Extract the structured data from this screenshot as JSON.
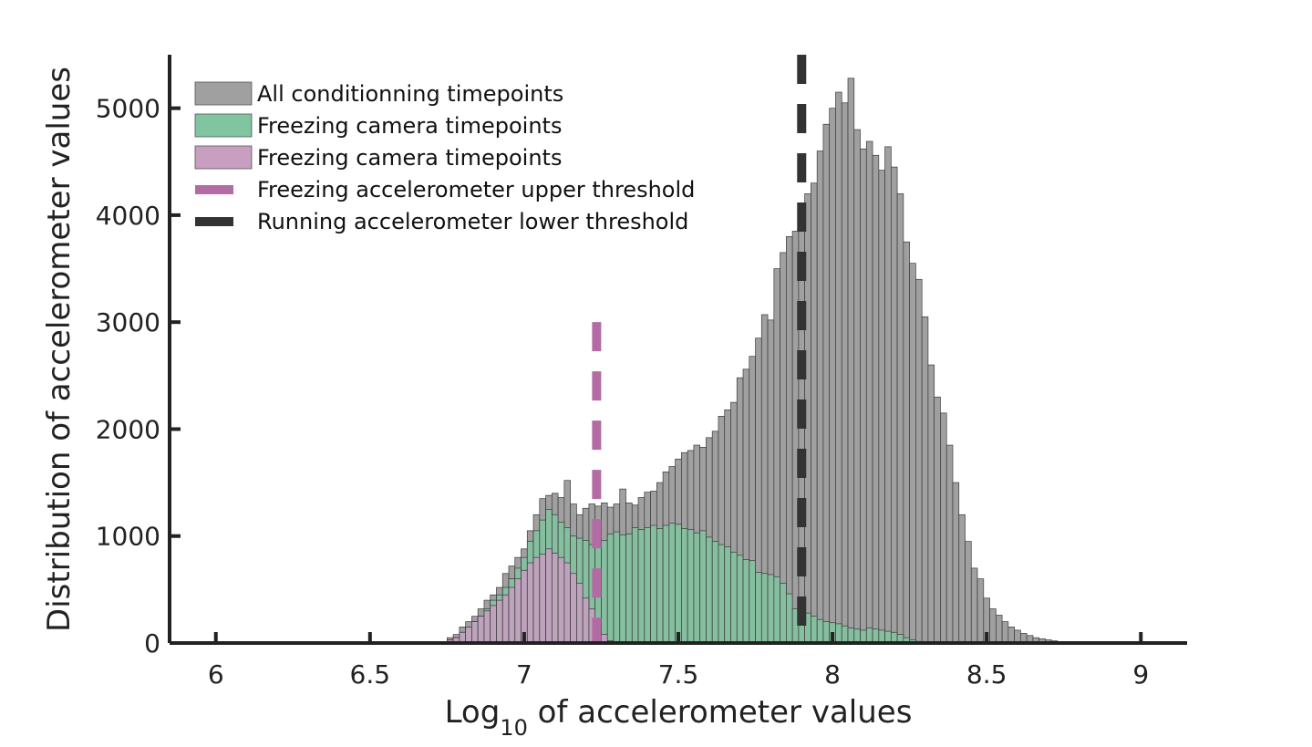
{
  "chart_data": {
    "type": "bar",
    "title": "",
    "xlabel_main": "Log",
    "xlabel_sub": "10",
    "xlabel_rest": " of accelerometer values",
    "ylabel": "Distribution of accelerometer values",
    "xlim": [
      5.85,
      9.15
    ],
    "ylim": [
      0,
      5500
    ],
    "xticks": [
      6,
      6.5,
      7,
      7.5,
      8,
      8.5,
      9
    ],
    "xtick_labels": [
      "6",
      "6.5",
      "7",
      "7.5",
      "8",
      "8.5",
      "9"
    ],
    "yticks": [
      0,
      1000,
      2000,
      3000,
      4000,
      5000
    ],
    "ytick_labels": [
      "0",
      "1000",
      "2000",
      "3000",
      "4000",
      "5000"
    ],
    "grid": false,
    "legend_position": "top-left",
    "bin_start": 6.75,
    "bin_width": 0.02,
    "series": [
      {
        "name": "All conditionning timepoints",
        "color": "#a0a0a0",
        "values": [
          50,
          80,
          150,
          200,
          250,
          320,
          400,
          450,
          520,
          650,
          720,
          800,
          880,
          1050,
          1200,
          1350,
          1380,
          1400,
          1360,
          1520,
          1300,
          1200,
          1260,
          1300,
          1280,
          1310,
          1270,
          1300,
          1440,
          1310,
          1290,
          1360,
          1410,
          1420,
          1500,
          1600,
          1650,
          1720,
          1780,
          1800,
          1850,
          1830,
          1920,
          1980,
          2120,
          2180,
          2250,
          2480,
          2560,
          2680,
          2850,
          3070,
          3020,
          3500,
          3650,
          3800,
          3850,
          3950,
          4200,
          4300,
          4600,
          4850,
          5000,
          5150,
          5050,
          5280,
          4800,
          4620,
          4690,
          4560,
          4420,
          4640,
          4450,
          4200,
          3750,
          3550,
          3400,
          3050,
          2600,
          2300,
          2150,
          1850,
          1500,
          1200,
          950,
          700,
          600,
          420,
          320,
          260,
          200,
          150,
          120,
          90,
          70,
          50,
          40,
          30,
          20,
          10
        ]
      },
      {
        "name": "Freezing camera timepoints",
        "color": "#80c4a0",
        "values": [
          30,
          50,
          100,
          150,
          200,
          250,
          320,
          400,
          450,
          520,
          600,
          700,
          800,
          950,
          1050,
          1150,
          1250,
          1200,
          1130,
          1080,
          1000,
          980,
          960,
          920,
          980,
          960,
          1020,
          1040,
          1010,
          1020,
          1080,
          1060,
          1080,
          1100,
          1070,
          1100,
          1120,
          1110,
          1070,
          1060,
          1030,
          1050,
          990,
          950,
          920,
          900,
          850,
          820,
          780,
          770,
          660,
          650,
          640,
          620,
          560,
          460,
          320,
          290,
          280,
          250,
          220,
          200,
          190,
          180,
          160,
          140,
          130,
          120,
          140,
          130,
          120,
          110,
          100,
          80,
          50,
          30,
          15,
          5
        ]
      },
      {
        "name": "Freezing camera timepoints",
        "color": "#c89ec1",
        "values": [
          30,
          50,
          100,
          150,
          200,
          250,
          300,
          350,
          400,
          450,
          520,
          600,
          680,
          750,
          800,
          830,
          880,
          840,
          800,
          750,
          650,
          560,
          420,
          320,
          180,
          80,
          20
        ]
      }
    ],
    "thresholds": [
      {
        "name": "Freezing accelerometer upper threshold",
        "x": 7.235,
        "y_top": 3000,
        "color": "#b36ba3"
      },
      {
        "name": "Running accelerometer lower threshold",
        "x": 7.9,
        "y_top": 5500,
        "color": "#333333"
      }
    ]
  }
}
